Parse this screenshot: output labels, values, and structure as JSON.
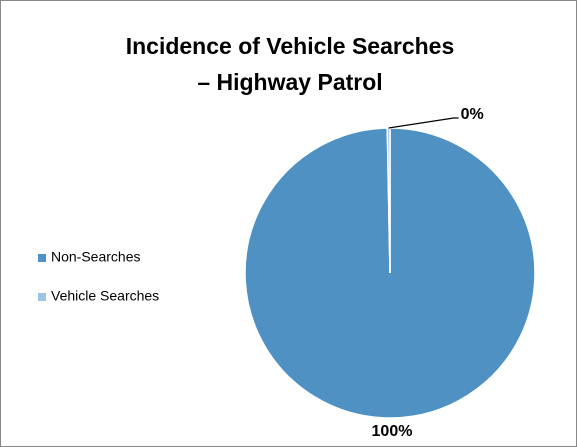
{
  "chart_data": {
    "type": "pie",
    "title": [
      "Incidence of Vehicle Searches",
      "– Highway Patrol"
    ],
    "categories": [
      "Non-Searches",
      "Vehicle Searches"
    ],
    "values": [
      99.7,
      0.3
    ],
    "value_labels": [
      "100%",
      "0%"
    ],
    "colors": [
      "#4f91c3",
      "#9dc3e6"
    ],
    "legend": "left"
  }
}
